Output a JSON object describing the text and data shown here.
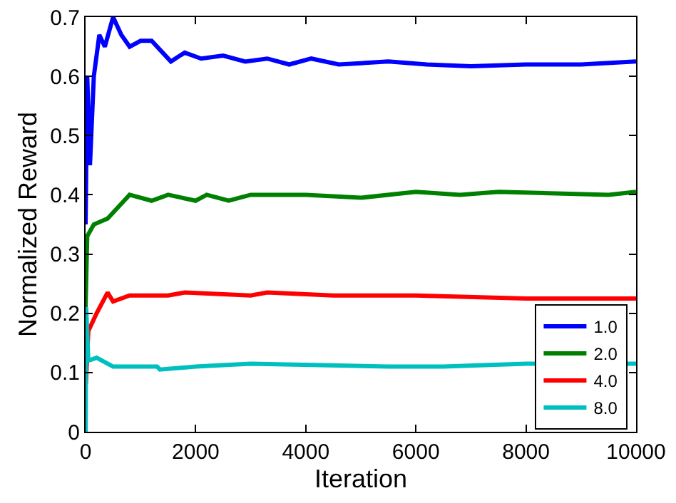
{
  "chart_data": {
    "type": "line",
    "xlabel": "Iteration",
    "ylabel": "Normalized Reward",
    "xlim": [
      0,
      10000
    ],
    "xticks": [
      0,
      2000,
      4000,
      6000,
      8000,
      10000
    ],
    "ylim": [
      0,
      0.7
    ],
    "yticks": [
      0,
      0.1,
      0.2,
      0.3,
      0.4,
      0.5,
      0.6,
      0.7
    ],
    "grid": false,
    "legend": "bottom right",
    "marker": "none",
    "line_style": "solid",
    "series": [
      {
        "name": "1.0",
        "color": "#0000ff",
        "x": [
          0,
          30,
          80,
          150,
          250,
          350,
          500,
          650,
          800,
          1000,
          1200,
          1400,
          1550,
          1800,
          2100,
          2500,
          2900,
          3300,
          3700,
          4100,
          4600,
          5500,
          6200,
          7000,
          8000,
          9000,
          10000
        ],
        "values": [
          0.35,
          0.6,
          0.45,
          0.6,
          0.67,
          0.65,
          0.7,
          0.67,
          0.65,
          0.66,
          0.66,
          0.64,
          0.625,
          0.64,
          0.63,
          0.635,
          0.625,
          0.63,
          0.62,
          0.63,
          0.62,
          0.625,
          0.62,
          0.617,
          0.62,
          0.62,
          0.625
        ]
      },
      {
        "name": "2.0",
        "color": "#008000",
        "x": [
          0,
          30,
          150,
          400,
          700,
          800,
          1200,
          1500,
          2000,
          2200,
          2600,
          3000,
          4000,
          5000,
          6000,
          6800,
          7500,
          9500,
          10000
        ],
        "values": [
          0.21,
          0.33,
          0.35,
          0.36,
          0.39,
          0.4,
          0.39,
          0.4,
          0.39,
          0.4,
          0.39,
          0.4,
          0.4,
          0.395,
          0.405,
          0.4,
          0.405,
          0.4,
          0.405
        ]
      },
      {
        "name": "4.0",
        "color": "#ff0000",
        "x": [
          5,
          50,
          200,
          400,
          500,
          800,
          1500,
          1800,
          3000,
          3300,
          4500,
          6000,
          8000,
          10000
        ],
        "values": [
          0.08,
          0.17,
          0.2,
          0.235,
          0.22,
          0.23,
          0.23,
          0.235,
          0.23,
          0.235,
          0.23,
          0.23,
          0.225,
          0.225
        ]
      },
      {
        "name": "8.0",
        "color": "#00bfbf",
        "x": [
          0,
          10,
          50,
          200,
          500,
          1300,
          1350,
          2000,
          3000,
          5500,
          6500,
          8000,
          10000
        ],
        "values": [
          0,
          0.21,
          0.12,
          0.125,
          0.11,
          0.11,
          0.105,
          0.11,
          0.115,
          0.11,
          0.11,
          0.115,
          0.115
        ]
      }
    ]
  }
}
